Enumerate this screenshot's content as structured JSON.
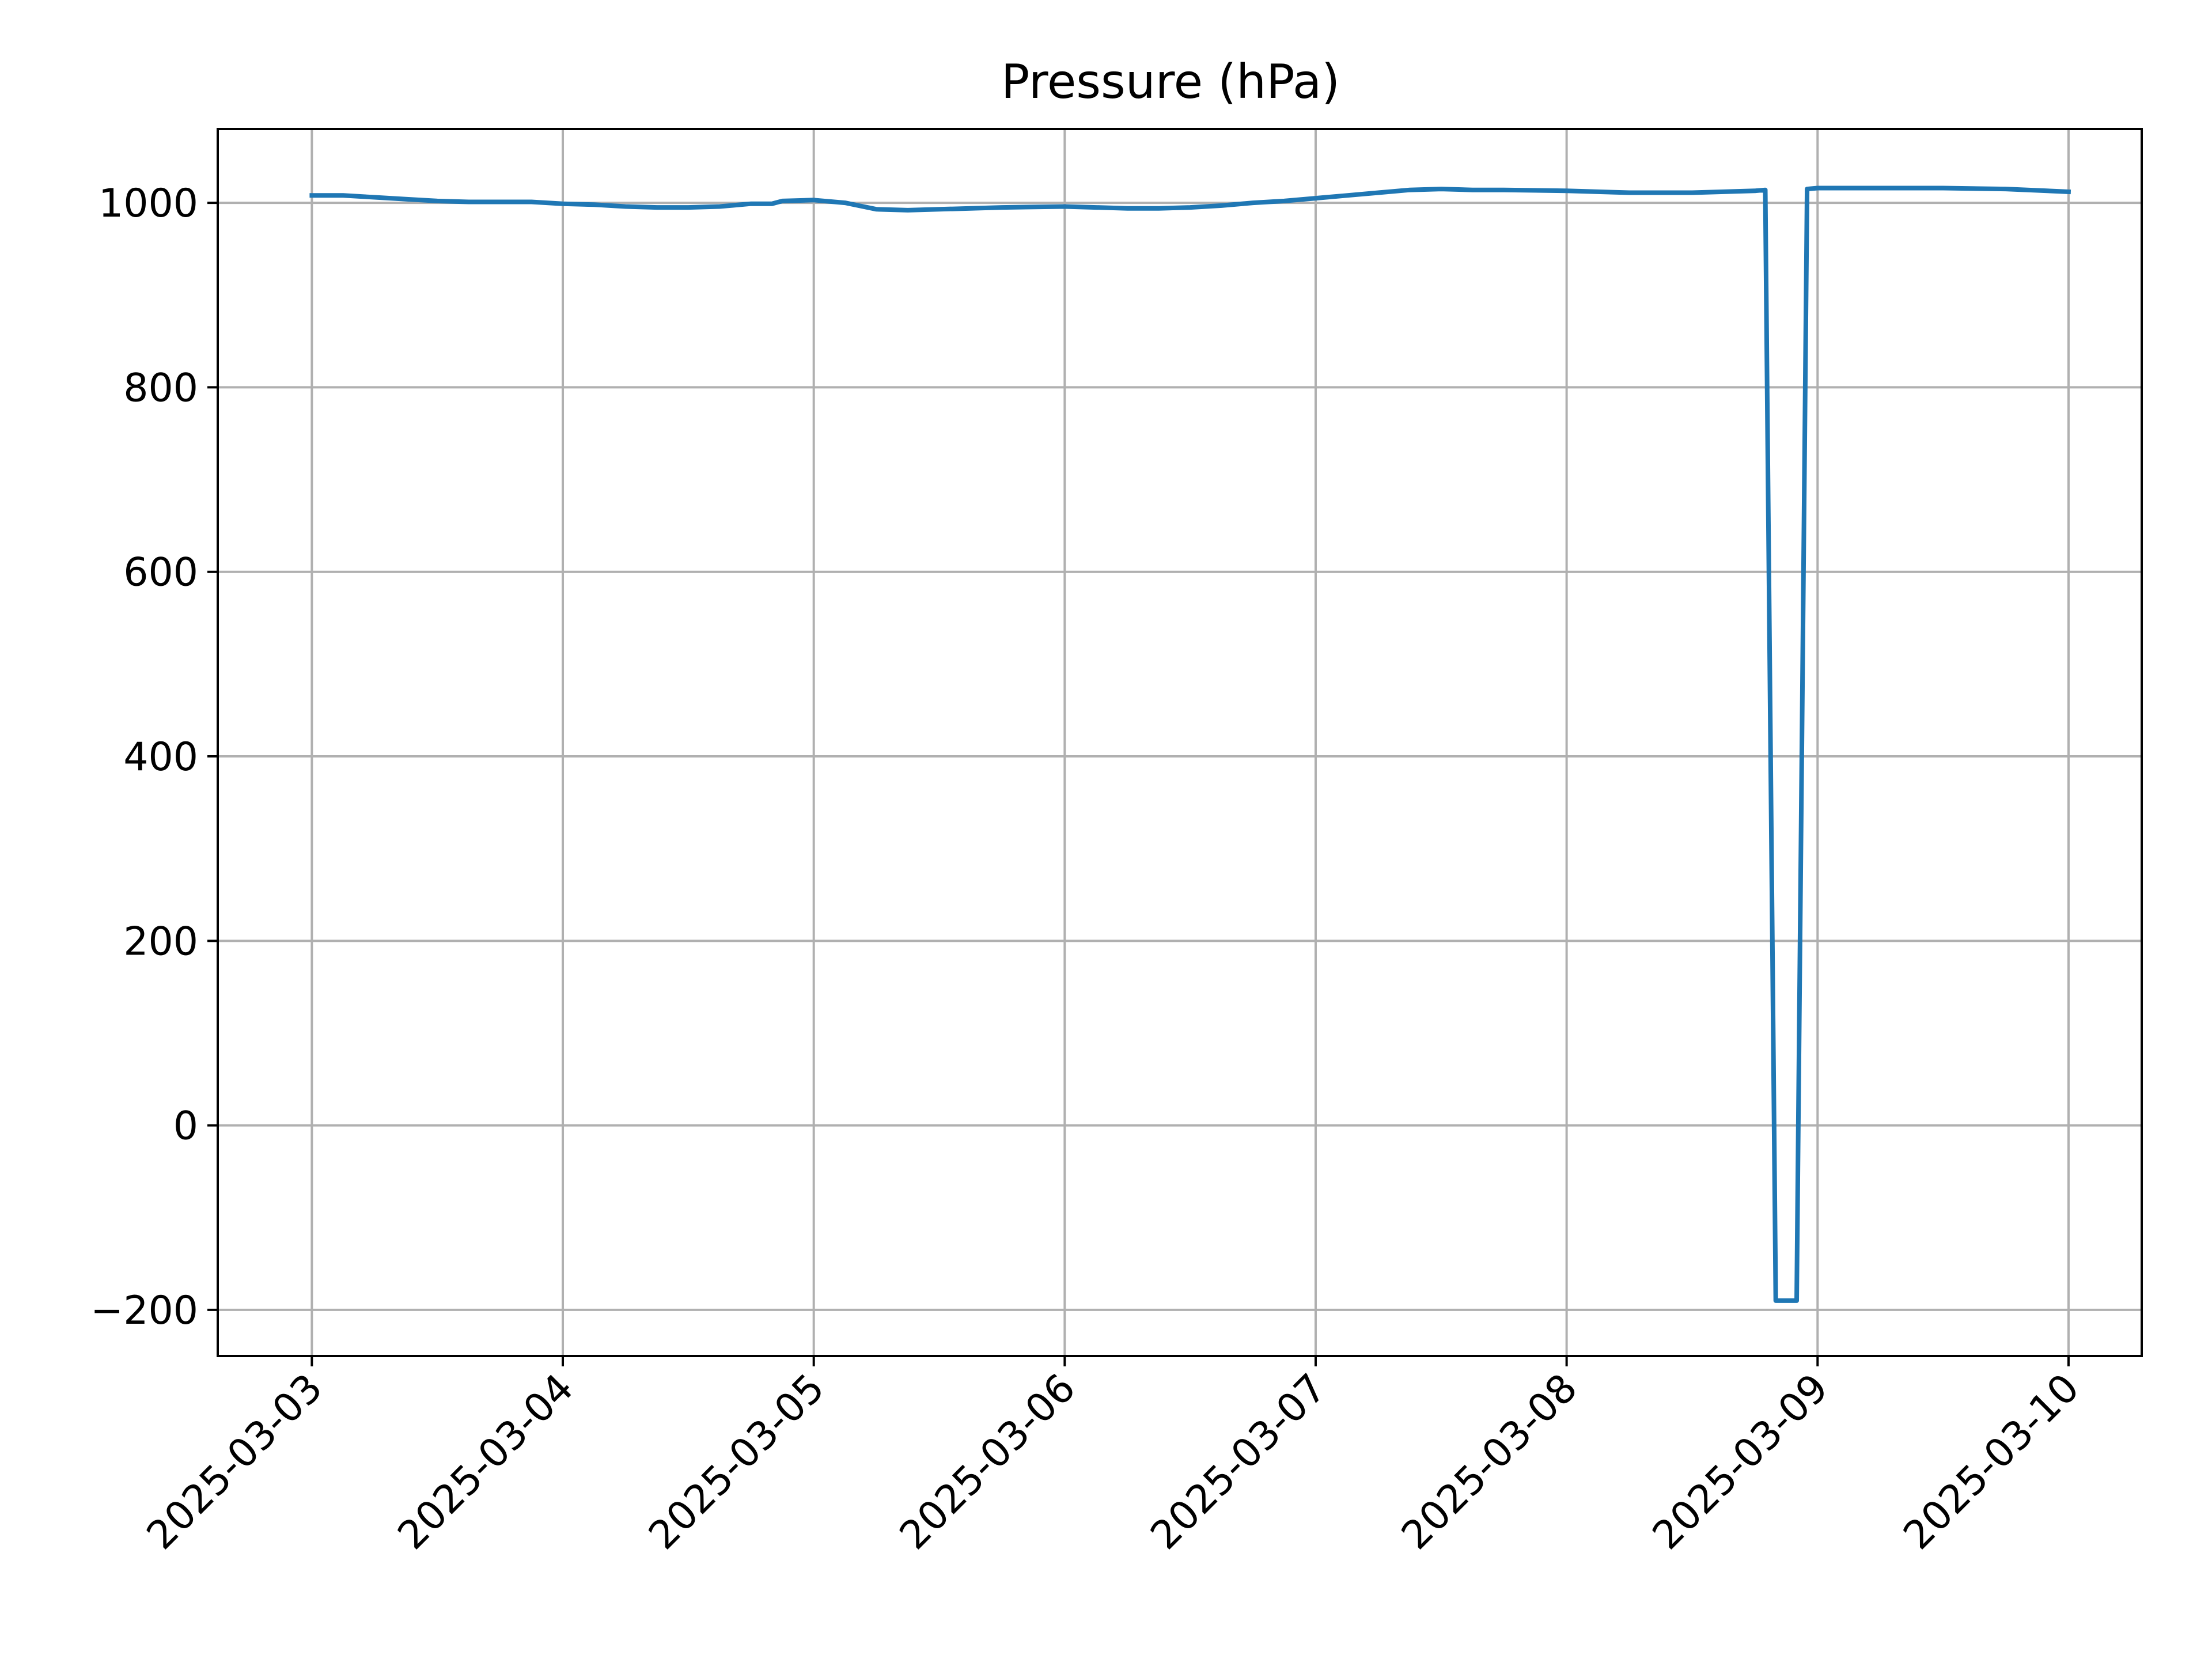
{
  "chart_data": {
    "type": "line",
    "title": "Pressure (hPa)",
    "xlabel": "",
    "ylabel": "",
    "x_type": "datetime",
    "x_ticks": [
      "2025-03-03",
      "2025-03-04",
      "2025-03-05",
      "2025-03-06",
      "2025-03-07",
      "2025-03-08",
      "2025-03-09",
      "2025-03-10"
    ],
    "y_ticks": [
      1000,
      800,
      600,
      400,
      200,
      0,
      -200
    ],
    "y_tick_labels": [
      "1000",
      "800",
      "600",
      "400",
      "200",
      "0",
      "−200"
    ],
    "xlim": [
      "2025-03-02T15:00",
      "2025-03-10T07:00"
    ],
    "ylim": [
      -250,
      1080
    ],
    "grid": true,
    "legend": "none",
    "series": [
      {
        "color": "#1f77b4",
        "x": [
          "2025-03-03T00:00",
          "2025-03-03T03:00",
          "2025-03-03T06:00",
          "2025-03-03T09:00",
          "2025-03-03T12:00",
          "2025-03-03T15:00",
          "2025-03-03T18:00",
          "2025-03-03T21:00",
          "2025-03-04T00:00",
          "2025-03-04T03:00",
          "2025-03-04T06:00",
          "2025-03-04T09:00",
          "2025-03-04T12:00",
          "2025-03-04T15:00",
          "2025-03-04T18:00",
          "2025-03-04T20:00",
          "2025-03-04T21:00",
          "2025-03-05T00:00",
          "2025-03-05T03:00",
          "2025-03-05T06:00",
          "2025-03-05T09:00",
          "2025-03-05T12:00",
          "2025-03-05T15:00",
          "2025-03-05T18:00",
          "2025-03-06T00:00",
          "2025-03-06T03:00",
          "2025-03-06T06:00",
          "2025-03-06T09:00",
          "2025-03-06T12:00",
          "2025-03-06T15:00",
          "2025-03-06T18:00",
          "2025-03-06T21:00",
          "2025-03-07T00:00",
          "2025-03-07T03:00",
          "2025-03-07T06:00",
          "2025-03-07T09:00",
          "2025-03-07T12:00",
          "2025-03-07T15:00",
          "2025-03-07T18:00",
          "2025-03-08T00:00",
          "2025-03-08T06:00",
          "2025-03-08T12:00",
          "2025-03-08T18:00",
          "2025-03-08T19:00",
          "2025-03-08T20:00",
          "2025-03-08T22:00",
          "2025-03-08T23:00",
          "2025-03-09T00:00",
          "2025-03-09T06:00",
          "2025-03-09T12:00",
          "2025-03-09T18:00",
          "2025-03-10T00:00"
        ],
        "values": [
          1008,
          1008,
          1006,
          1004,
          1002,
          1001,
          1001,
          1001,
          999,
          998,
          996,
          995,
          995,
          996,
          999,
          999,
          1002,
          1003,
          1000,
          993,
          992,
          993,
          994,
          995,
          996,
          995,
          994,
          994,
          995,
          997,
          1000,
          1002,
          1005,
          1008,
          1011,
          1014,
          1015,
          1014,
          1014,
          1013,
          1011,
          1011,
          1013,
          1014,
          -190,
          -190,
          1015,
          1016,
          1016,
          1016,
          1015,
          1012
        ]
      }
    ]
  }
}
